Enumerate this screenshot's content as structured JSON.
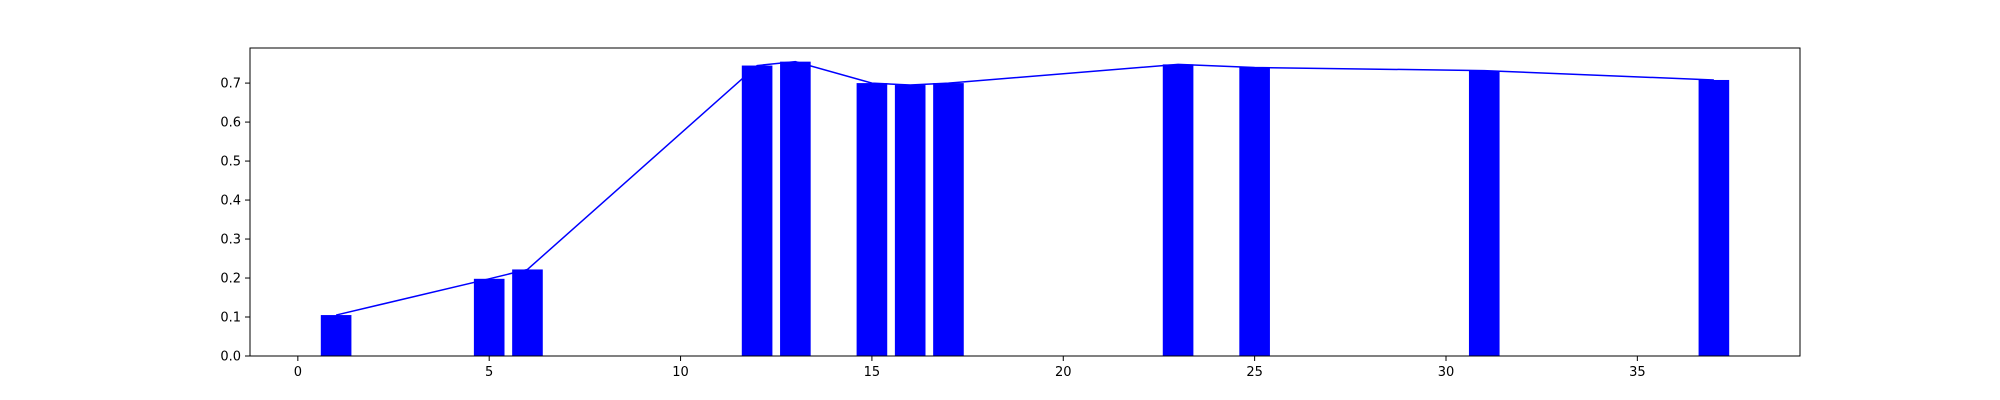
{
  "chart_data": {
    "type": "bar",
    "title": "",
    "xlabel": "",
    "ylabel": "",
    "xlim": [
      -1.25,
      39.25
    ],
    "ylim": [
      0.0,
      0.79
    ],
    "grid": false,
    "x_ticks": [
      0,
      5,
      10,
      15,
      20,
      25,
      30,
      35
    ],
    "y_ticks": [
      0.0,
      0.1,
      0.2,
      0.3,
      0.4,
      0.5,
      0.6,
      0.7
    ],
    "bar_width": 0.8,
    "x": [
      1,
      5,
      6,
      12,
      13,
      15,
      16,
      17,
      23,
      25,
      31,
      37
    ],
    "bars": [
      0.105,
      0.198,
      0.222,
      0.745,
      0.755,
      0.7,
      0.695,
      0.7,
      0.748,
      0.74,
      0.732,
      0.708
    ],
    "line": [
      0.105,
      0.198,
      0.222,
      0.745,
      0.755,
      0.7,
      0.695,
      0.7,
      0.748,
      0.74,
      0.732,
      0.708
    ],
    "colors": {
      "bar": "#0000ff",
      "line": "#0000ff"
    }
  }
}
